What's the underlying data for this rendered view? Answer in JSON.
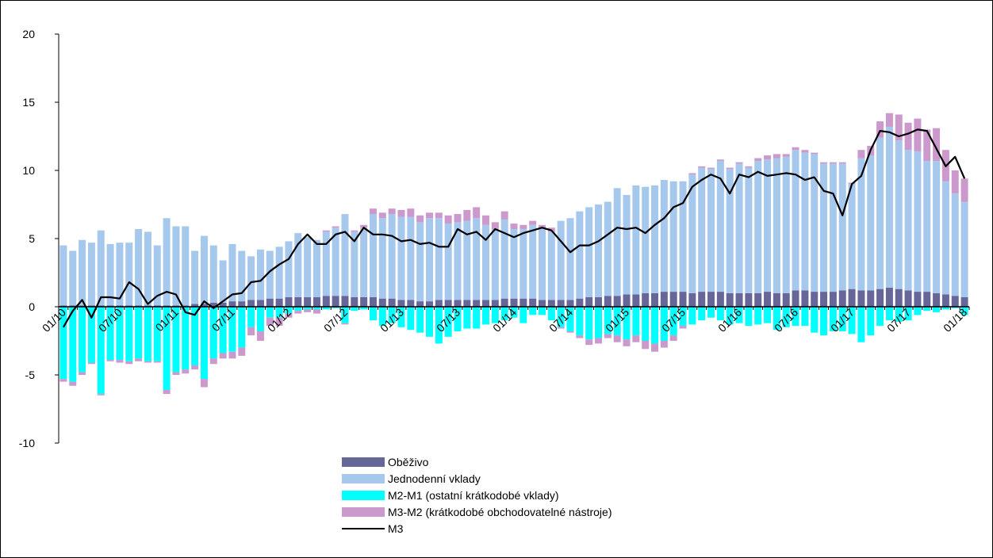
{
  "chart_data": {
    "type": "bar",
    "stacked": true,
    "categories": [
      "01/10",
      null,
      null,
      null,
      null,
      null,
      "07/10",
      null,
      null,
      null,
      null,
      null,
      "01/11",
      null,
      null,
      null,
      null,
      null,
      "07/11",
      null,
      null,
      null,
      null,
      null,
      "01/12",
      null,
      null,
      null,
      null,
      null,
      "07/12",
      null,
      null,
      null,
      null,
      null,
      "01/13",
      null,
      null,
      null,
      null,
      null,
      "07/13",
      null,
      null,
      null,
      null,
      null,
      "01/14",
      null,
      null,
      null,
      null,
      null,
      "07/14",
      null,
      null,
      null,
      null,
      null,
      "01/15",
      null,
      null,
      null,
      null,
      null,
      "07/15",
      null,
      null,
      null,
      null,
      null,
      "01/16",
      null,
      null,
      null,
      null,
      null,
      "07/16",
      null,
      null,
      null,
      null,
      null,
      "01/17",
      null,
      null,
      null,
      null,
      null,
      "07/17",
      null,
      null,
      null,
      null,
      null,
      "01/18"
    ],
    "series": [
      {
        "name": "Oběživo",
        "color": "#666699",
        "values": [
          0.1,
          0.1,
          0.1,
          0.1,
          0.1,
          0.1,
          0.1,
          0.1,
          0.1,
          0.1,
          0.1,
          0.1,
          0.1,
          0.1,
          0.2,
          0.2,
          0.3,
          0.3,
          0.4,
          0.4,
          0.5,
          0.5,
          0.6,
          0.6,
          0.7,
          0.7,
          0.7,
          0.7,
          0.8,
          0.8,
          0.8,
          0.7,
          0.7,
          0.7,
          0.6,
          0.6,
          0.5,
          0.5,
          0.4,
          0.4,
          0.5,
          0.5,
          0.5,
          0.5,
          0.5,
          0.5,
          0.5,
          0.6,
          0.6,
          0.6,
          0.6,
          0.5,
          0.5,
          0.5,
          0.5,
          0.6,
          0.7,
          0.7,
          0.8,
          0.8,
          0.9,
          0.9,
          1.0,
          1.0,
          1.1,
          1.1,
          1.1,
          1.0,
          1.1,
          1.1,
          1.1,
          1.0,
          1.0,
          1.0,
          1.0,
          1.1,
          1.0,
          1.0,
          1.2,
          1.2,
          1.1,
          1.1,
          1.1,
          1.2,
          1.3,
          1.2,
          1.2,
          1.3,
          1.4,
          1.3,
          1.2,
          1.1,
          1.1,
          1.0,
          0.9,
          0.8,
          0.7
        ]
      },
      {
        "name": "Jednodenní vklady",
        "color": "#a6c8ec",
        "values": [
          4.4,
          4.0,
          4.8,
          4.6,
          5.5,
          4.5,
          4.6,
          4.6,
          5.6,
          5.4,
          4.4,
          6.4,
          5.8,
          5.8,
          3.9,
          5.0,
          4.2,
          3.1,
          4.2,
          3.7,
          3.2,
          3.7,
          3.5,
          3.8,
          4.1,
          4.7,
          4.4,
          4.2,
          4.7,
          5.0,
          6.0,
          4.8,
          5.1,
          6.1,
          5.9,
          6.2,
          6.1,
          6.1,
          5.8,
          6.1,
          6.0,
          5.6,
          5.7,
          5.8,
          6.0,
          5.5,
          5.2,
          5.8,
          5.1,
          5.1,
          5.4,
          5.3,
          5.0,
          5.8,
          6.0,
          6.4,
          6.6,
          6.8,
          6.9,
          7.9,
          7.3,
          8.0,
          7.8,
          7.9,
          8.2,
          8.1,
          8.1,
          8.7,
          9.1,
          9.0,
          9.6,
          9.1,
          9.5,
          9.2,
          9.7,
          9.7,
          9.9,
          10.0,
          10.3,
          10.1,
          10.1,
          9.4,
          9.4,
          9.3,
          7.7,
          9.7,
          9.9,
          11.1,
          11.8,
          10.9,
          10.3,
          10.3,
          9.6,
          9.7,
          8.3,
          7.5,
          7.0
        ]
      },
      {
        "name": "M2-M1 (ostatní krátkodobé vklady)",
        "color": "#00ffff",
        "values": [
          -5.3,
          -5.5,
          -4.8,
          -4.1,
          -6.4,
          -3.9,
          -3.9,
          -4.0,
          -3.8,
          -4.0,
          -4.0,
          -6.1,
          -4.8,
          -4.6,
          -4.3,
          -5.3,
          -3.8,
          -3.4,
          -3.3,
          -3.0,
          -1.5,
          -1.8,
          -0.8,
          -0.8,
          -0.5,
          -0.3,
          -0.2,
          -0.2,
          -0.2,
          -0.1,
          -1.2,
          -0.3,
          -0.2,
          -1.0,
          -1.4,
          -1.2,
          -1.5,
          -1.7,
          -1.9,
          -2.2,
          -2.7,
          -2.2,
          -1.8,
          -1.6,
          -1.6,
          -1.3,
          -1.2,
          -1.0,
          -0.8,
          -1.2,
          -0.6,
          -0.6,
          -1.0,
          -1.5,
          -1.8,
          -2.1,
          -2.4,
          -2.3,
          -2.0,
          -2.1,
          -2.4,
          -2.1,
          -2.5,
          -2.7,
          -2.5,
          -2.1,
          -1.4,
          -1.3,
          -1.0,
          -0.8,
          -1.0,
          -1.3,
          -1.2,
          -1.4,
          -1.3,
          -1.2,
          -1.7,
          -1.5,
          -1.4,
          -1.4,
          -1.9,
          -2.1,
          -1.8,
          -1.8,
          -2.0,
          -2.6,
          -2.1,
          -1.4,
          -1.0,
          -1.1,
          -1.0,
          -0.6,
          -0.3,
          -0.4,
          -0.2,
          -0.1,
          -0.6
        ]
      },
      {
        "name": "M3-M2 (krátkodobé obchodovatelné nástroje)",
        "color": "#cc99cc",
        "values": [
          -0.2,
          -0.3,
          -0.2,
          -0.1,
          -0.1,
          -0.1,
          -0.2,
          -0.2,
          -0.2,
          -0.1,
          -0.1,
          -0.3,
          -0.2,
          -0.3,
          -0.3,
          -0.6,
          -0.4,
          -0.4,
          -0.5,
          -0.6,
          -0.6,
          -0.7,
          -0.6,
          -0.6,
          -0.3,
          -0.2,
          -0.2,
          -0.3,
          0.1,
          0.1,
          -0.1,
          0.1,
          0.2,
          0.4,
          0.4,
          0.4,
          0.5,
          0.6,
          0.5,
          0.4,
          0.4,
          0.6,
          0.6,
          0.8,
          0.8,
          0.7,
          0.5,
          0.6,
          0.4,
          0.3,
          0.3,
          0.2,
          0.3,
          -0.1,
          -0.1,
          -0.2,
          -0.4,
          -0.4,
          -0.3,
          -0.5,
          -0.5,
          -0.5,
          -0.6,
          -0.6,
          -0.5,
          -0.4,
          -0.2,
          0.1,
          0.1,
          0.1,
          0.1,
          0.1,
          0.1,
          0.1,
          0.2,
          0.3,
          0.3,
          0.2,
          0.2,
          0.2,
          0.1,
          0.1,
          0.1,
          0.1,
          0.1,
          0.6,
          0.7,
          1.2,
          1.0,
          1.9,
          2.0,
          2.4,
          2.3,
          2.4,
          2.3,
          1.7,
          1.7
        ]
      },
      {
        "name": "M3",
        "type": "line",
        "color": "#000000",
        "values": [
          -1.5,
          -0.3,
          0.5,
          -0.8,
          0.7,
          0.7,
          0.6,
          1.8,
          1.3,
          0.2,
          0.8,
          1.1,
          0.9,
          -0.4,
          -0.6,
          0.4,
          -0.1,
          0.4,
          0.9,
          1.0,
          1.8,
          1.9,
          2.6,
          3.1,
          3.5,
          4.6,
          5.3,
          4.6,
          4.6,
          5.3,
          5.5,
          4.8,
          5.8,
          5.3,
          5.3,
          5.2,
          4.8,
          4.9,
          4.6,
          4.7,
          4.4,
          4.4,
          5.7,
          5.3,
          5.5,
          4.9,
          5.7,
          5.4,
          5.1,
          5.4,
          5.6,
          5.8,
          5.6,
          4.8,
          4.0,
          4.5,
          4.5,
          4.8,
          5.3,
          5.8,
          5.7,
          5.8,
          5.4,
          6.0,
          6.5,
          7.3,
          7.6,
          8.8,
          9.3,
          9.7,
          9.4,
          8.3,
          9.7,
          9.5,
          9.9,
          9.6,
          9.7,
          9.8,
          9.7,
          9.3,
          9.5,
          8.5,
          8.3,
          6.7,
          9.0,
          9.6,
          11.5,
          12.9,
          12.8,
          12.5,
          12.7,
          13.0,
          12.9,
          11.6,
          10.3,
          11.0,
          9.4
        ]
      }
    ],
    "ylim": [
      -10,
      20
    ],
    "yticks": [
      -10,
      -5,
      0,
      5,
      10,
      15,
      20
    ],
    "grid": false
  }
}
